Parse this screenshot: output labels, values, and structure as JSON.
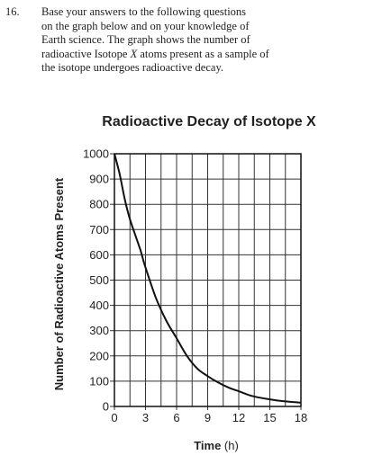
{
  "question": {
    "number": "16.",
    "line1": "Base your answers to the following questions",
    "line2": "on the graph below and on your knowledge of",
    "line3": "Earth science. The graph shows the number of",
    "line4_pre": "radioactive Isotope ",
    "line4_var": "X",
    "line4_post": " atoms present as a sample of",
    "line5": "the isotope undergoes radioactive decay."
  },
  "chart_data": {
    "type": "line",
    "title": "Radioactive Decay of Isotope X",
    "xlabel": "Time",
    "xlabel_unit": "(h)",
    "ylabel": "Number of Radioactive Atoms Present",
    "xlim": [
      0,
      18
    ],
    "ylim": [
      0,
      1000
    ],
    "xticks": [
      0,
      3,
      6,
      9,
      12,
      15,
      18
    ],
    "yticks": [
      0,
      100,
      200,
      300,
      400,
      500,
      600,
      700,
      800,
      900,
      1000
    ],
    "grid": true,
    "series": [
      {
        "x": [
          0,
          0.5,
          1,
          1.5,
          2,
          2.5,
          3,
          4,
          5,
          6,
          7,
          8,
          9,
          10,
          11,
          12,
          13,
          14,
          15,
          16,
          17,
          18
        ],
        "y": [
          1000,
          920,
          820,
          740,
          680,
          620,
          550,
          430,
          340,
          270,
          200,
          150,
          120,
          95,
          75,
          60,
          45,
          35,
          28,
          22,
          18,
          15
        ]
      }
    ]
  }
}
